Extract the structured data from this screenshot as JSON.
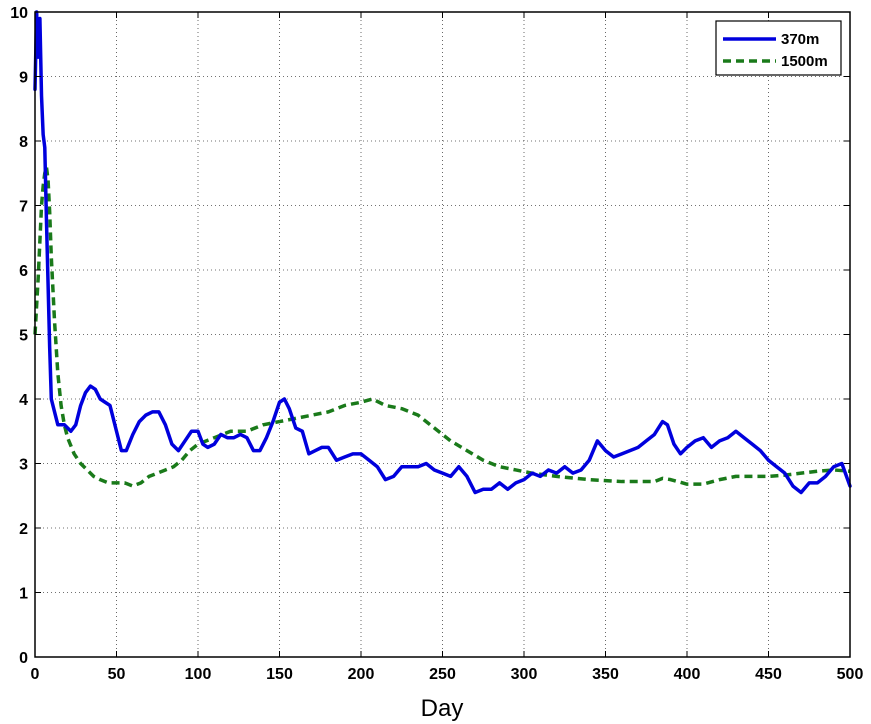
{
  "chart_data": {
    "type": "line",
    "title": "",
    "xlabel": "Day",
    "ylabel": "",
    "xlim": [
      0,
      500
    ],
    "ylim": [
      0,
      10
    ],
    "xticks": [
      0,
      50,
      100,
      150,
      200,
      250,
      300,
      350,
      400,
      450,
      500
    ],
    "yticks": [
      0,
      1,
      2,
      3,
      4,
      5,
      6,
      7,
      8,
      9,
      10
    ],
    "grid": true,
    "legend_position": "top-right",
    "series": [
      {
        "name": "370m",
        "color": "#0000dd",
        "style": "solid",
        "x": [
          0,
          1,
          2,
          3,
          4,
          5,
          6,
          7,
          8,
          9,
          10,
          12,
          14,
          16,
          18,
          20,
          22,
          25,
          28,
          31,
          34,
          37,
          40,
          43,
          46,
          50,
          53,
          56,
          60,
          64,
          68,
          72,
          76,
          80,
          84,
          88,
          92,
          96,
          100,
          103,
          106,
          110,
          114,
          118,
          122,
          126,
          130,
          134,
          138,
          142,
          146,
          150,
          153,
          156,
          160,
          164,
          168,
          172,
          176,
          180,
          185,
          190,
          195,
          200,
          205,
          210,
          215,
          220,
          225,
          230,
          235,
          240,
          245,
          250,
          255,
          260,
          265,
          270,
          275,
          280,
          285,
          290,
          295,
          300,
          305,
          310,
          315,
          320,
          325,
          330,
          335,
          340,
          345,
          350,
          355,
          360,
          365,
          370,
          375,
          380,
          385,
          388,
          392,
          396,
          400,
          405,
          410,
          415,
          420,
          425,
          430,
          435,
          440,
          445,
          450,
          455,
          460,
          465,
          470,
          475,
          480,
          485,
          490,
          495,
          500
        ],
        "values": [
          8.8,
          10.0,
          9.3,
          9.9,
          8.7,
          8.1,
          7.9,
          6.8,
          5.8,
          4.8,
          4.0,
          3.8,
          3.6,
          3.6,
          3.6,
          3.55,
          3.5,
          3.6,
          3.9,
          4.1,
          4.2,
          4.15,
          4.0,
          3.95,
          3.9,
          3.5,
          3.2,
          3.2,
          3.45,
          3.65,
          3.75,
          3.8,
          3.8,
          3.6,
          3.3,
          3.2,
          3.35,
          3.5,
          3.5,
          3.3,
          3.25,
          3.3,
          3.45,
          3.4,
          3.4,
          3.45,
          3.4,
          3.2,
          3.2,
          3.4,
          3.65,
          3.95,
          4.0,
          3.85,
          3.55,
          3.5,
          3.15,
          3.2,
          3.25,
          3.25,
          3.05,
          3.1,
          3.15,
          3.15,
          3.05,
          2.95,
          2.75,
          2.8,
          2.95,
          2.95,
          2.95,
          3.0,
          2.9,
          2.85,
          2.8,
          2.95,
          2.8,
          2.55,
          2.6,
          2.6,
          2.7,
          2.6,
          2.7,
          2.75,
          2.85,
          2.8,
          2.9,
          2.85,
          2.95,
          2.85,
          2.9,
          3.05,
          3.35,
          3.2,
          3.1,
          3.15,
          3.2,
          3.25,
          3.35,
          3.45,
          3.65,
          3.6,
          3.3,
          3.15,
          3.25,
          3.35,
          3.4,
          3.25,
          3.35,
          3.4,
          3.5,
          3.4,
          3.3,
          3.2,
          3.05,
          2.95,
          2.85,
          2.65,
          2.55,
          2.7,
          2.7,
          2.8,
          2.95,
          3.0,
          2.65
        ]
      },
      {
        "name": "1500m",
        "color": "#1a7a1a",
        "style": "dashed",
        "x": [
          0,
          2,
          4,
          5,
          6,
          7,
          8,
          9,
          10,
          12,
          14,
          16,
          18,
          20,
          24,
          28,
          32,
          36,
          40,
          45,
          50,
          55,
          60,
          65,
          70,
          75,
          80,
          85,
          90,
          95,
          100,
          110,
          120,
          130,
          140,
          150,
          160,
          170,
          180,
          190,
          200,
          207,
          215,
          225,
          235,
          245,
          255,
          265,
          275,
          285,
          295,
          305,
          320,
          340,
          360,
          380,
          385,
          390,
          400,
          410,
          420,
          430,
          440,
          450,
          460,
          470,
          480,
          490,
          500
        ],
        "values": [
          5.0,
          5.9,
          7.0,
          7.3,
          7.5,
          7.6,
          7.4,
          6.9,
          6.2,
          5.2,
          4.4,
          3.9,
          3.6,
          3.4,
          3.15,
          3.0,
          2.9,
          2.8,
          2.75,
          2.7,
          2.7,
          2.7,
          2.65,
          2.7,
          2.8,
          2.85,
          2.9,
          2.95,
          3.05,
          3.2,
          3.3,
          3.4,
          3.5,
          3.5,
          3.6,
          3.65,
          3.7,
          3.75,
          3.8,
          3.9,
          3.95,
          4.0,
          3.9,
          3.85,
          3.75,
          3.55,
          3.35,
          3.2,
          3.05,
          2.95,
          2.9,
          2.85,
          2.8,
          2.75,
          2.72,
          2.72,
          2.77,
          2.75,
          2.68,
          2.68,
          2.75,
          2.8,
          2.8,
          2.8,
          2.82,
          2.85,
          2.88,
          2.9,
          2.88
        ]
      }
    ]
  }
}
